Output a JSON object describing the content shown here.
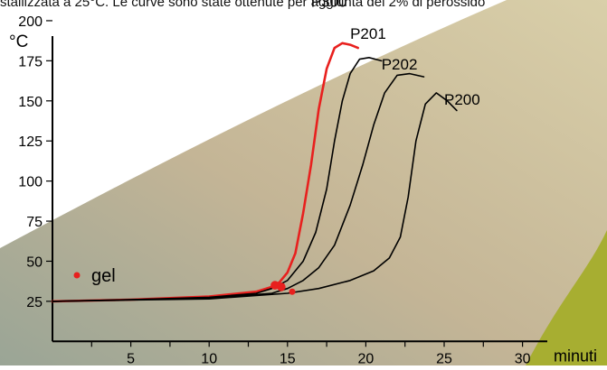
{
  "caption": "stallizzata a 25°C. Le curve sono state ottenute per aggiunta del 2% di perossido",
  "chart_data": {
    "type": "line",
    "ylabel": "°C",
    "xlabel": "minuti",
    "x_ticks": [
      5,
      10,
      15,
      20,
      25,
      30
    ],
    "y_ticks": [
      25,
      50,
      75,
      100,
      125,
      150,
      175,
      200
    ],
    "xlim": [
      0,
      31
    ],
    "ylim": [
      0,
      225
    ],
    "legend": {
      "label": "gel",
      "placement": "left",
      "color": "#e8201e"
    },
    "series": [
      {
        "name": "P300",
        "color": "#e8201e",
        "points": [
          [
            0,
            25
          ],
          [
            5,
            26
          ],
          [
            10,
            28
          ],
          [
            13,
            31
          ],
          [
            14,
            34
          ],
          [
            14.5,
            37
          ],
          [
            15,
            43
          ],
          [
            15.5,
            55
          ],
          [
            16,
            80
          ],
          [
            16.5,
            110
          ],
          [
            17,
            145
          ],
          [
            17.5,
            170
          ],
          [
            18,
            183
          ],
          [
            18.5,
            186
          ],
          [
            19,
            185
          ],
          [
            19.5,
            183
          ]
        ]
      },
      {
        "name": "P201",
        "color": "#000000",
        "points": [
          [
            0,
            25
          ],
          [
            5,
            26
          ],
          [
            10,
            27.5
          ],
          [
            13,
            30
          ],
          [
            14,
            33
          ],
          [
            15,
            38
          ],
          [
            16,
            50
          ],
          [
            16.8,
            68
          ],
          [
            17.5,
            95
          ],
          [
            18,
            125
          ],
          [
            18.5,
            150
          ],
          [
            19,
            167
          ],
          [
            19.6,
            176
          ],
          [
            20.2,
            177
          ],
          [
            21,
            175
          ]
        ]
      },
      {
        "name": "P202",
        "color": "#000000",
        "points": [
          [
            0,
            25
          ],
          [
            5,
            26
          ],
          [
            10,
            27
          ],
          [
            14,
            30
          ],
          [
            15,
            33
          ],
          [
            16,
            38
          ],
          [
            17,
            46
          ],
          [
            18,
            60
          ],
          [
            19,
            85
          ],
          [
            19.8,
            110
          ],
          [
            20.5,
            135
          ],
          [
            21.2,
            155
          ],
          [
            22,
            166
          ],
          [
            22.8,
            167
          ],
          [
            23.7,
            165
          ]
        ]
      },
      {
        "name": "P200",
        "color": "#000000",
        "points": [
          [
            0,
            25
          ],
          [
            5,
            25.8
          ],
          [
            10,
            26.5
          ],
          [
            15,
            30
          ],
          [
            17,
            33
          ],
          [
            19,
            38
          ],
          [
            20.5,
            44
          ],
          [
            21.5,
            52
          ],
          [
            22.2,
            65
          ],
          [
            22.7,
            90
          ],
          [
            23.2,
            125
          ],
          [
            23.8,
            148
          ],
          [
            24.5,
            155
          ],
          [
            25.2,
            150
          ],
          [
            25.8,
            144
          ]
        ]
      }
    ],
    "gel_points": [
      [
        14.2,
        35
      ],
      [
        14.6,
        34
      ],
      [
        15.3,
        31
      ]
    ],
    "curve_labels": [
      {
        "text": "P300",
        "at": [
          16.5,
          212
        ]
      },
      {
        "text": "P201",
        "at": [
          19,
          192
        ]
      },
      {
        "text": "P202",
        "at": [
          21,
          173
        ]
      },
      {
        "text": "P200",
        "at": [
          25,
          151
        ]
      }
    ]
  }
}
